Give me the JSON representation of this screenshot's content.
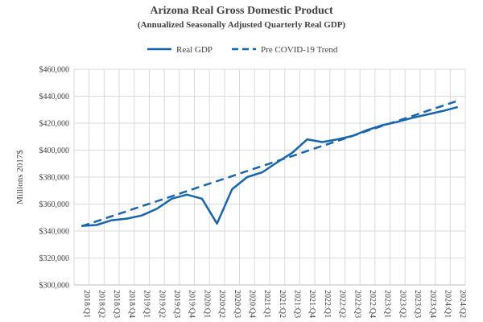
{
  "chart_data": {
    "type": "line",
    "title": "Arizona  Real Gross Domestic Product",
    "subtitle": "(Annualized  Seasonally Adjusted  Quarterly Real GDP)",
    "xlabel": "",
    "ylabel": "Millions 2017$",
    "ylim": [
      300000,
      460000
    ],
    "yticks": [
      300000,
      320000,
      340000,
      360000,
      380000,
      400000,
      420000,
      440000,
      460000
    ],
    "ytick_labels": [
      "$300,000",
      "$320,000",
      "$340,000",
      "$360,000",
      "$380,000",
      "$400,000",
      "$420,000",
      "$440,000",
      "$460,000"
    ],
    "categories": [
      "2018:Q1",
      "2018:Q2",
      "2018:Q3",
      "2018:Q4",
      "2019:Q1",
      "2019:Q2",
      "2019:Q3",
      "2019:Q4",
      "2020:Q1",
      "2020:Q2",
      "2020:Q3",
      "2020:Q4",
      "2021:Q1",
      "2021:Q2",
      "2021:Q3",
      "2021:Q4",
      "2022:Q1",
      "2022:Q2",
      "2022:Q3",
      "2022:Q4",
      "2023:Q1",
      "2023:Q2",
      "2023:Q3",
      "2023:Q4",
      "2024:Q1",
      "2024:Q2"
    ],
    "series": [
      {
        "name": "Real GDP",
        "style": "solid",
        "color": "#1565b0",
        "values": [
          343800,
          344500,
          348000,
          349200,
          351500,
          356500,
          364000,
          367000,
          364000,
          345500,
          371000,
          380000,
          383500,
          391000,
          398000,
          408000,
          406000,
          408000,
          410500,
          415000,
          418500,
          421000,
          424000,
          426500,
          429000,
          432000
        ]
      },
      {
        "name": "Pre COVID-19 Trend",
        "style": "dashed",
        "color": "#1565b0",
        "values": [
          343500,
          347200,
          351000,
          354700,
          358400,
          362100,
          365800,
          369600,
          373300,
          377000,
          380700,
          384500,
          388200,
          391900,
          395600,
          399400,
          403100,
          406800,
          410500,
          414300,
          418000,
          421700,
          425400,
          429200,
          432900,
          436600
        ]
      }
    ],
    "legend": "top-center",
    "grid": true
  }
}
